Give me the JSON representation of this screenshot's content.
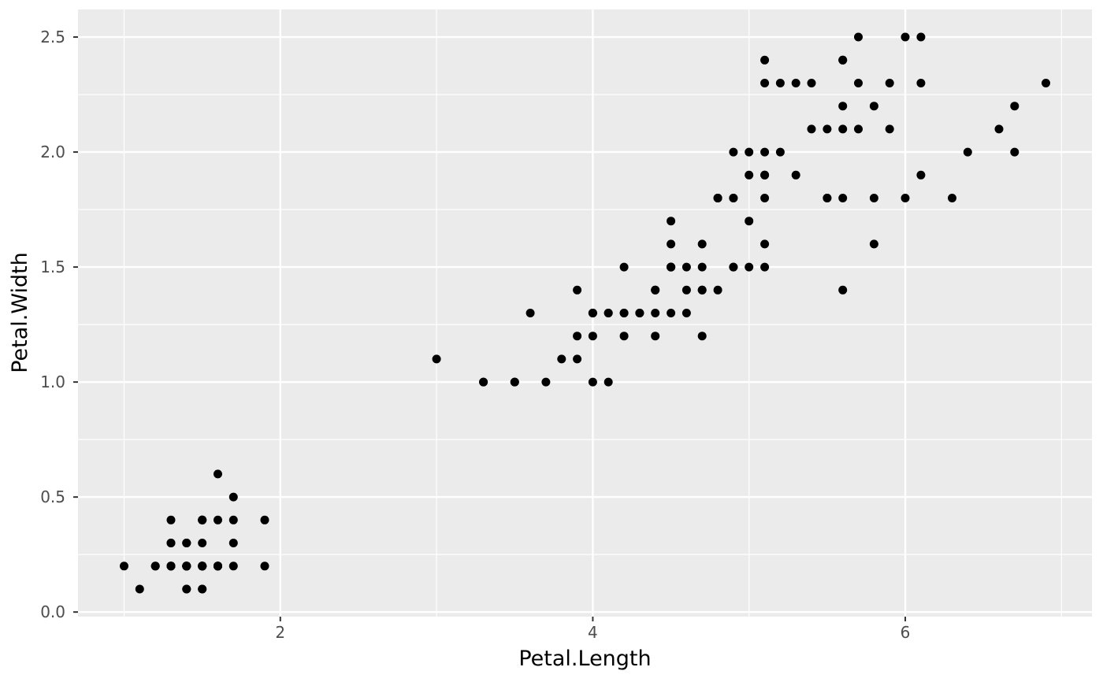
{
  "chart_data": {
    "type": "scatter",
    "title": "",
    "xlabel": "Petal.Length",
    "ylabel": "Petal.Width",
    "x_ticks": [
      2,
      4,
      6
    ],
    "x_tick_labels": [
      "2",
      "4",
      "6"
    ],
    "y_ticks": [
      0.0,
      0.5,
      1.0,
      1.5,
      2.0,
      2.5
    ],
    "y_tick_labels": [
      "0.0",
      "0.5",
      "1.0",
      "1.5",
      "2.0",
      "2.5"
    ],
    "x_minor_ticks": [
      1,
      3,
      5,
      7
    ],
    "y_minor_ticks": [
      0.25,
      0.75,
      1.25,
      1.75,
      2.25
    ],
    "xlim": [
      0.705,
      7.195
    ],
    "ylim": [
      -0.02,
      2.62
    ],
    "grid": true,
    "legend_position": "none",
    "colors": {
      "panel_background": "#EBEBEB",
      "grid_lines": "#FFFFFF",
      "points": "#000000",
      "tick_labels": "#4D4D4D",
      "tick_marks": "#333333",
      "axis_titles": "#000000",
      "plot_background": "#FFFFFF"
    },
    "points": [
      [
        1.4,
        0.2
      ],
      [
        1.4,
        0.2
      ],
      [
        1.3,
        0.2
      ],
      [
        1.5,
        0.2
      ],
      [
        1.4,
        0.2
      ],
      [
        1.7,
        0.4
      ],
      [
        1.4,
        0.3
      ],
      [
        1.5,
        0.2
      ],
      [
        1.4,
        0.2
      ],
      [
        1.5,
        0.1
      ],
      [
        1.5,
        0.2
      ],
      [
        1.6,
        0.2
      ],
      [
        1.4,
        0.1
      ],
      [
        1.1,
        0.1
      ],
      [
        1.2,
        0.2
      ],
      [
        1.5,
        0.4
      ],
      [
        1.3,
        0.4
      ],
      [
        1.4,
        0.3
      ],
      [
        1.7,
        0.3
      ],
      [
        1.5,
        0.3
      ],
      [
        1.7,
        0.2
      ],
      [
        1.5,
        0.4
      ],
      [
        1.0,
        0.2
      ],
      [
        1.7,
        0.5
      ],
      [
        1.9,
        0.2
      ],
      [
        1.6,
        0.2
      ],
      [
        1.6,
        0.4
      ],
      [
        1.5,
        0.2
      ],
      [
        1.4,
        0.2
      ],
      [
        1.6,
        0.2
      ],
      [
        1.6,
        0.2
      ],
      [
        1.5,
        0.4
      ],
      [
        1.5,
        0.1
      ],
      [
        1.4,
        0.2
      ],
      [
        1.5,
        0.2
      ],
      [
        1.2,
        0.2
      ],
      [
        1.3,
        0.2
      ],
      [
        1.4,
        0.1
      ],
      [
        1.3,
        0.2
      ],
      [
        1.5,
        0.2
      ],
      [
        1.3,
        0.3
      ],
      [
        1.3,
        0.3
      ],
      [
        1.3,
        0.2
      ],
      [
        1.6,
        0.6
      ],
      [
        1.9,
        0.4
      ],
      [
        1.4,
        0.3
      ],
      [
        1.6,
        0.2
      ],
      [
        1.4,
        0.2
      ],
      [
        1.5,
        0.2
      ],
      [
        1.4,
        0.2
      ],
      [
        4.7,
        1.4
      ],
      [
        4.5,
        1.5
      ],
      [
        4.9,
        1.5
      ],
      [
        4.0,
        1.3
      ],
      [
        4.6,
        1.5
      ],
      [
        4.5,
        1.3
      ],
      [
        4.7,
        1.6
      ],
      [
        3.3,
        1.0
      ],
      [
        4.6,
        1.3
      ],
      [
        3.9,
        1.4
      ],
      [
        3.5,
        1.0
      ],
      [
        4.2,
        1.5
      ],
      [
        4.0,
        1.0
      ],
      [
        4.7,
        1.4
      ],
      [
        3.6,
        1.3
      ],
      [
        4.4,
        1.4
      ],
      [
        4.5,
        1.5
      ],
      [
        4.1,
        1.0
      ],
      [
        4.5,
        1.5
      ],
      [
        3.9,
        1.1
      ],
      [
        4.8,
        1.8
      ],
      [
        4.0,
        1.3
      ],
      [
        4.9,
        1.5
      ],
      [
        4.7,
        1.2
      ],
      [
        4.3,
        1.3
      ],
      [
        4.4,
        1.4
      ],
      [
        4.8,
        1.4
      ],
      [
        5.0,
        1.7
      ],
      [
        4.5,
        1.5
      ],
      [
        3.5,
        1.0
      ],
      [
        3.8,
        1.1
      ],
      [
        3.7,
        1.0
      ],
      [
        3.9,
        1.2
      ],
      [
        5.1,
        1.6
      ],
      [
        4.5,
        1.5
      ],
      [
        4.5,
        1.6
      ],
      [
        4.7,
        1.5
      ],
      [
        4.4,
        1.3
      ],
      [
        4.1,
        1.3
      ],
      [
        4.0,
        1.3
      ],
      [
        4.4,
        1.2
      ],
      [
        4.6,
        1.4
      ],
      [
        4.0,
        1.2
      ],
      [
        3.3,
        1.0
      ],
      [
        4.2,
        1.3
      ],
      [
        4.2,
        1.2
      ],
      [
        4.2,
        1.3
      ],
      [
        4.3,
        1.3
      ],
      [
        3.0,
        1.1
      ],
      [
        4.1,
        1.3
      ],
      [
        6.0,
        2.5
      ],
      [
        5.1,
        1.9
      ],
      [
        5.9,
        2.1
      ],
      [
        5.6,
        1.8
      ],
      [
        5.8,
        2.2
      ],
      [
        6.6,
        2.1
      ],
      [
        4.5,
        1.7
      ],
      [
        6.3,
        1.8
      ],
      [
        5.8,
        1.8
      ],
      [
        6.1,
        2.5
      ],
      [
        5.1,
        2.0
      ],
      [
        5.3,
        1.9
      ],
      [
        5.5,
        2.1
      ],
      [
        5.0,
        2.0
      ],
      [
        5.1,
        2.4
      ],
      [
        5.3,
        2.3
      ],
      [
        5.5,
        1.8
      ],
      [
        6.7,
        2.2
      ],
      [
        6.9,
        2.3
      ],
      [
        5.0,
        1.5
      ],
      [
        5.7,
        2.3
      ],
      [
        4.9,
        2.0
      ],
      [
        6.7,
        2.0
      ],
      [
        4.9,
        1.8
      ],
      [
        5.7,
        2.1
      ],
      [
        6.0,
        1.8
      ],
      [
        4.8,
        1.8
      ],
      [
        4.9,
        1.8
      ],
      [
        5.6,
        2.1
      ],
      [
        5.8,
        1.6
      ],
      [
        6.1,
        1.9
      ],
      [
        6.4,
        2.0
      ],
      [
        5.6,
        2.2
      ],
      [
        5.1,
        1.5
      ],
      [
        5.6,
        1.4
      ],
      [
        6.1,
        2.3
      ],
      [
        5.6,
        2.4
      ],
      [
        5.5,
        1.8
      ],
      [
        4.8,
        1.8
      ],
      [
        5.4,
        2.1
      ],
      [
        5.6,
        2.4
      ],
      [
        5.1,
        2.3
      ],
      [
        5.1,
        1.9
      ],
      [
        5.9,
        2.3
      ],
      [
        5.7,
        2.5
      ],
      [
        5.2,
        2.3
      ],
      [
        5.0,
        1.9
      ],
      [
        5.2,
        2.0
      ],
      [
        5.4,
        2.3
      ],
      [
        5.1,
        1.8
      ]
    ]
  }
}
